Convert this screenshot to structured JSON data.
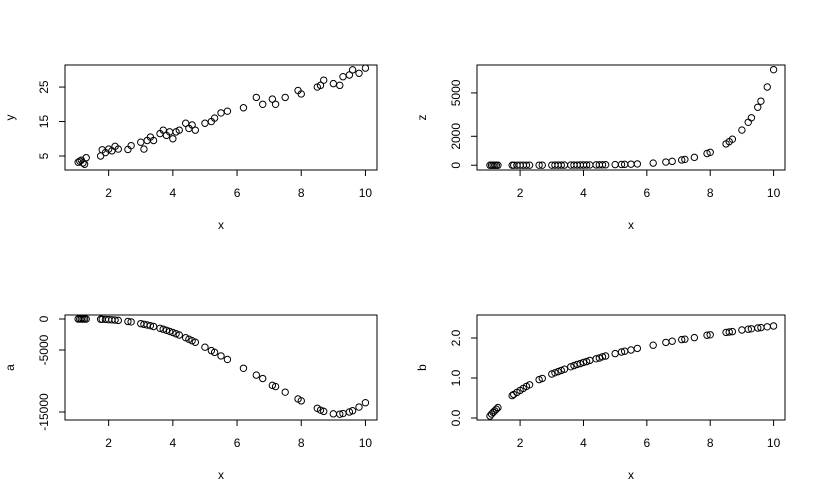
{
  "chart_data": [
    {
      "type": "scatter",
      "xlabel": "x",
      "ylabel": "y",
      "x": [
        1.05,
        1.1,
        1.15,
        1.2,
        1.25,
        1.3,
        1.75,
        1.8,
        1.9,
        2.0,
        2.1,
        2.2,
        2.3,
        2.6,
        2.7,
        3.0,
        3.1,
        3.2,
        3.3,
        3.4,
        3.6,
        3.7,
        3.8,
        3.9,
        4.0,
        4.1,
        4.2,
        4.4,
        4.5,
        4.6,
        4.7,
        5.0,
        5.2,
        5.3,
        5.5,
        5.7,
        6.2,
        6.6,
        6.8,
        7.1,
        7.2,
        7.5,
        7.9,
        8.0,
        8.5,
        8.6,
        8.7,
        9.0,
        9.2,
        9.3,
        9.5,
        9.6,
        9.8,
        10.0
      ],
      "values": [
        3.2,
        3.5,
        3.8,
        3.0,
        2.6,
        4.5,
        5.0,
        6.8,
        6.0,
        7.0,
        6.5,
        7.8,
        7.0,
        6.9,
        8.0,
        9.0,
        7.0,
        9.5,
        10.5,
        9.5,
        11.5,
        12.5,
        11.0,
        12.0,
        10.0,
        12.0,
        12.5,
        14.5,
        13.0,
        14.0,
        12.5,
        14.5,
        15.0,
        16.0,
        17.5,
        18.0,
        19.0,
        22.0,
        20.0,
        21.5,
        20.0,
        22.0,
        24.0,
        23.0,
        25.0,
        25.5,
        27.0,
        26.0,
        25.5,
        28.0,
        28.5,
        30.0,
        29.0,
        30.5
      ],
      "xlim": [
        0.64,
        10.36
      ],
      "xticks": [
        2,
        4,
        6,
        8,
        10
      ],
      "ylim": [
        0.94,
        31.4
      ],
      "yticks": [
        5,
        15,
        25
      ]
    },
    {
      "type": "scatter",
      "xlabel": "x",
      "ylabel": "z",
      "x": [
        1.05,
        1.1,
        1.15,
        1.2,
        1.25,
        1.3,
        1.75,
        1.8,
        1.9,
        2.0,
        2.1,
        2.2,
        2.3,
        2.6,
        2.7,
        3.0,
        3.1,
        3.2,
        3.3,
        3.4,
        3.6,
        3.7,
        3.8,
        3.9,
        4.0,
        4.1,
        4.2,
        4.4,
        4.5,
        4.6,
        4.7,
        5.0,
        5.2,
        5.3,
        5.5,
        5.7,
        6.2,
        6.6,
        6.8,
        7.1,
        7.2,
        7.5,
        7.9,
        8.0,
        8.5,
        8.6,
        8.7,
        9.0,
        9.2,
        9.3,
        9.5,
        9.6,
        9.8,
        10.0
      ],
      "values": [
        1,
        1,
        1,
        1,
        1,
        1,
        2,
        2,
        2,
        2,
        2,
        3,
        3,
        4,
        5,
        6,
        7,
        7,
        8,
        9,
        11,
        12,
        13,
        15,
        16,
        18,
        20,
        24,
        27,
        30,
        33,
        45,
        54,
        60,
        73,
        90,
        148,
        221,
        270,
        363,
        402,
        543,
        810,
        894,
        1475,
        1630,
        1800,
        2431,
        2969,
        3281,
        4007,
        4429,
        5409,
        6608
      ],
      "xlim": [
        0.64,
        10.36
      ],
      "xticks": [
        2,
        4,
        6,
        8,
        10
      ],
      "ylim": [
        -330,
        6930
      ],
      "yticks": [
        0,
        2000,
        5000
      ]
    },
    {
      "type": "scatter",
      "xlabel": "x",
      "ylabel": "a",
      "x": [
        1.05,
        1.1,
        1.15,
        1.2,
        1.25,
        1.3,
        1.75,
        1.8,
        1.9,
        2.0,
        2.1,
        2.2,
        2.3,
        2.6,
        2.7,
        3.0,
        3.1,
        3.2,
        3.3,
        3.4,
        3.6,
        3.7,
        3.8,
        3.9,
        4.0,
        4.1,
        4.2,
        4.4,
        4.5,
        4.6,
        4.7,
        5.0,
        5.2,
        5.3,
        5.5,
        5.7,
        6.2,
        6.6,
        6.8,
        7.1,
        7.2,
        7.5,
        7.9,
        8.0,
        8.5,
        8.6,
        8.7,
        9.0,
        9.2,
        9.3,
        9.5,
        9.6,
        9.8,
        10.0
      ],
      "values": [
        -2,
        -3,
        -3,
        -4,
        -4,
        -5,
        -40,
        -50,
        -70,
        -100,
        -130,
        -170,
        -220,
        -400,
        -470,
        -750,
        -850,
        -960,
        -1080,
        -1210,
        -1500,
        -1650,
        -1820,
        -2000,
        -2180,
        -2380,
        -2580,
        -3020,
        -3260,
        -3500,
        -3750,
        -4550,
        -5100,
        -5380,
        -5950,
        -6520,
        -7950,
        -9050,
        -9600,
        -10700,
        -10900,
        -11800,
        -12900,
        -13200,
        -14400,
        -14700,
        -14900,
        -15300,
        -15350,
        -15250,
        -15000,
        -14800,
        -14200,
        -13500
      ],
      "xlim": [
        0.64,
        10.36
      ],
      "xticks": [
        2,
        4,
        6,
        8,
        10
      ],
      "ylim": [
        -16290,
        645
      ],
      "yticks": [
        0,
        -5000,
        -15000
      ]
    },
    {
      "type": "scatter",
      "xlabel": "x",
      "ylabel": "b",
      "x": [
        1.05,
        1.1,
        1.15,
        1.2,
        1.25,
        1.3,
        1.75,
        1.8,
        1.9,
        2.0,
        2.1,
        2.2,
        2.3,
        2.6,
        2.7,
        3.0,
        3.1,
        3.2,
        3.3,
        3.4,
        3.6,
        3.7,
        3.8,
        3.9,
        4.0,
        4.1,
        4.2,
        4.4,
        4.5,
        4.6,
        4.7,
        5.0,
        5.2,
        5.3,
        5.5,
        5.7,
        6.2,
        6.6,
        6.8,
        7.1,
        7.2,
        7.5,
        7.9,
        8.0,
        8.5,
        8.6,
        8.7,
        9.0,
        9.2,
        9.3,
        9.5,
        9.6,
        9.8,
        10.0
      ],
      "values": [
        0.05,
        0.1,
        0.14,
        0.18,
        0.22,
        0.26,
        0.56,
        0.59,
        0.64,
        0.69,
        0.74,
        0.79,
        0.83,
        0.96,
        0.99,
        1.1,
        1.13,
        1.16,
        1.19,
        1.22,
        1.28,
        1.31,
        1.34,
        1.36,
        1.39,
        1.41,
        1.44,
        1.48,
        1.5,
        1.53,
        1.55,
        1.61,
        1.65,
        1.67,
        1.7,
        1.74,
        1.82,
        1.89,
        1.92,
        1.96,
        1.97,
        2.01,
        2.07,
        2.08,
        2.14,
        2.15,
        2.16,
        2.2,
        2.22,
        2.23,
        2.25,
        2.26,
        2.28,
        2.3
      ],
      "xlim": [
        0.64,
        10.36
      ],
      "xticks": [
        2,
        4,
        6,
        8,
        10
      ],
      "ylim": [
        -0.05,
        2.575
      ],
      "yticks": [
        {
          "value": 0,
          "label": "0.0"
        },
        {
          "value": 1,
          "label": "1.0"
        },
        {
          "value": 2,
          "label": "2.0"
        }
      ]
    }
  ]
}
